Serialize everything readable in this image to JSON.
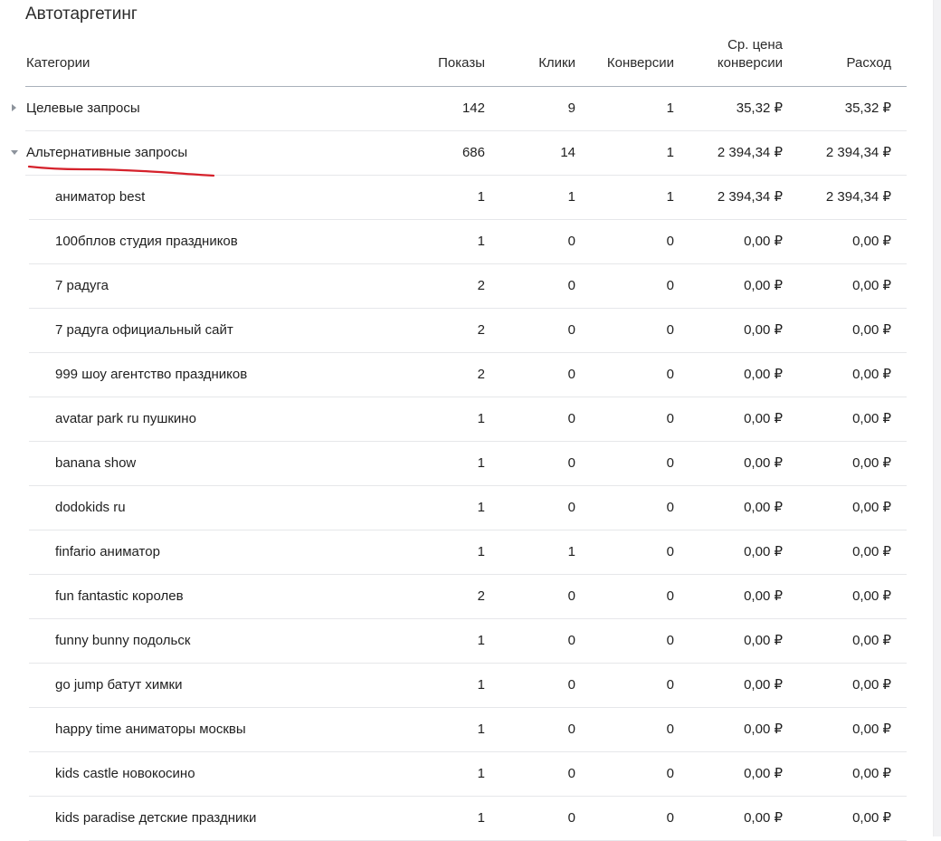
{
  "page": {
    "title": "Автотаргетинг"
  },
  "table": {
    "columns": {
      "category": "Категории",
      "impressions": "Показы",
      "clicks": "Клики",
      "conversions": "Конверсии",
      "avg_cpa_line1": "Ср. цена",
      "avg_cpa_line2": "конверсии",
      "spend": "Расход"
    },
    "groups": [
      {
        "name": "Целевые запросы",
        "expanded": false,
        "impressions": "142",
        "clicks": "9",
        "conversions": "1",
        "avg_cpa": "35,32 ₽",
        "spend": "35,32 ₽"
      },
      {
        "name": "Альтернативные запросы",
        "expanded": true,
        "impressions": "686",
        "clicks": "14",
        "conversions": "1",
        "avg_cpa": "2 394,34 ₽",
        "spend": "2 394,34 ₽"
      }
    ],
    "children": [
      {
        "name": "аниматор best",
        "impressions": "1",
        "clicks": "1",
        "conversions": "1",
        "avg_cpa": "2 394,34 ₽",
        "spend": "2 394,34 ₽"
      },
      {
        "name": "100бплов студия праздников",
        "impressions": "1",
        "clicks": "0",
        "conversions": "0",
        "avg_cpa": "0,00 ₽",
        "spend": "0,00 ₽"
      },
      {
        "name": "7 радуга",
        "impressions": "2",
        "clicks": "0",
        "conversions": "0",
        "avg_cpa": "0,00 ₽",
        "spend": "0,00 ₽"
      },
      {
        "name": "7 радуга официальный сайт",
        "impressions": "2",
        "clicks": "0",
        "conversions": "0",
        "avg_cpa": "0,00 ₽",
        "spend": "0,00 ₽"
      },
      {
        "name": "999 шоу агентство праздников",
        "impressions": "2",
        "clicks": "0",
        "conversions": "0",
        "avg_cpa": "0,00 ₽",
        "spend": "0,00 ₽"
      },
      {
        "name": "avatar park ru пушкино",
        "impressions": "1",
        "clicks": "0",
        "conversions": "0",
        "avg_cpa": "0,00 ₽",
        "spend": "0,00 ₽"
      },
      {
        "name": "banana show",
        "impressions": "1",
        "clicks": "0",
        "conversions": "0",
        "avg_cpa": "0,00 ₽",
        "spend": "0,00 ₽"
      },
      {
        "name": "dodokids ru",
        "impressions": "1",
        "clicks": "0",
        "conversions": "0",
        "avg_cpa": "0,00 ₽",
        "spend": "0,00 ₽"
      },
      {
        "name": "finfario аниматор",
        "impressions": "1",
        "clicks": "1",
        "conversions": "0",
        "avg_cpa": "0,00 ₽",
        "spend": "0,00 ₽"
      },
      {
        "name": "fun fantastic королев",
        "impressions": "2",
        "clicks": "0",
        "conversions": "0",
        "avg_cpa": "0,00 ₽",
        "spend": "0,00 ₽"
      },
      {
        "name": "funny bunny подольск",
        "impressions": "1",
        "clicks": "0",
        "conversions": "0",
        "avg_cpa": "0,00 ₽",
        "spend": "0,00 ₽"
      },
      {
        "name": "go jump батут химки",
        "impressions": "1",
        "clicks": "0",
        "conversions": "0",
        "avg_cpa": "0,00 ₽",
        "spend": "0,00 ₽"
      },
      {
        "name": "happy time аниматоры москвы",
        "impressions": "1",
        "clicks": "0",
        "conversions": "0",
        "avg_cpa": "0,00 ₽",
        "spend": "0,00 ₽"
      },
      {
        "name": "kids castle новокосино",
        "impressions": "1",
        "clicks": "0",
        "conversions": "0",
        "avg_cpa": "0,00 ₽",
        "spend": "0,00 ₽"
      },
      {
        "name": "kids paradise детские праздники",
        "impressions": "1",
        "clicks": "0",
        "conversions": "0",
        "avg_cpa": "0,00 ₽",
        "spend": "0,00 ₽"
      }
    ]
  },
  "icons": {
    "collapsed_toggle": "chevron-right-icon",
    "expanded_toggle": "chevron-down-icon"
  },
  "colors": {
    "annotation_underline": "#d5212b",
    "header_rule": "#a9b0bb",
    "row_rule": "#e6e7ea",
    "toggle": "#8d939c"
  }
}
